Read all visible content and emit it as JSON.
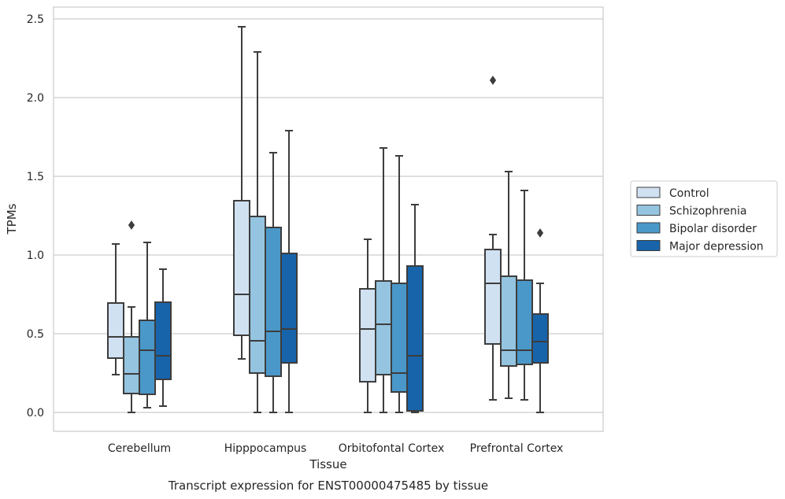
{
  "chart_data": {
    "type": "box",
    "title": "",
    "caption": "Transcript expression for ENST00000475485 by tissue",
    "xlabel": "Tissue",
    "ylabel": "TPMs",
    "ylim": [
      -0.12,
      2.58
    ],
    "yticks": [
      0.0,
      0.5,
      1.0,
      1.5,
      2.0,
      2.5
    ],
    "ytick_labels": [
      "0.0",
      "0.5",
      "1.0",
      "1.5",
      "2.0",
      "2.5"
    ],
    "grid": "horizontal",
    "legend_position": "right",
    "categories": [
      "Cerebellum",
      "Hipppocampus",
      "Orbitofontal Cortex",
      "Prefrontal Cortex"
    ],
    "series": [
      {
        "name": "Control",
        "color": "#d0e1f2",
        "boxes": [
          {
            "whislo": 0.24,
            "q1": 0.345,
            "med": 0.48,
            "q3": 0.695,
            "whishi": 1.07,
            "fliers": []
          },
          {
            "whislo": 0.34,
            "q1": 0.49,
            "med": 0.75,
            "q3": 1.345,
            "whishi": 2.45,
            "fliers": []
          },
          {
            "whislo": 0.0,
            "q1": 0.195,
            "med": 0.53,
            "q3": 0.785,
            "whishi": 1.1,
            "fliers": []
          },
          {
            "whislo": 0.08,
            "q1": 0.435,
            "med": 0.82,
            "q3": 1.035,
            "whishi": 1.13,
            "fliers": [
              2.11
            ]
          }
        ]
      },
      {
        "name": "Schizophrenia",
        "color": "#94c4df",
        "boxes": [
          {
            "whislo": 0.0,
            "q1": 0.12,
            "med": 0.245,
            "q3": 0.48,
            "whishi": 0.67,
            "fliers": [
              1.19
            ]
          },
          {
            "whislo": 0.0,
            "q1": 0.25,
            "med": 0.455,
            "q3": 1.245,
            "whishi": 2.29,
            "fliers": []
          },
          {
            "whislo": 0.0,
            "q1": 0.24,
            "med": 0.56,
            "q3": 0.835,
            "whishi": 1.68,
            "fliers": []
          },
          {
            "whislo": 0.09,
            "q1": 0.295,
            "med": 0.395,
            "q3": 0.865,
            "whishi": 1.53,
            "fliers": []
          }
        ]
      },
      {
        "name": "Bipolar disorder",
        "color": "#4a98c9",
        "boxes": [
          {
            "whislo": 0.03,
            "q1": 0.115,
            "med": 0.395,
            "q3": 0.585,
            "whishi": 1.08,
            "fliers": []
          },
          {
            "whislo": 0.0,
            "q1": 0.23,
            "med": 0.515,
            "q3": 1.175,
            "whishi": 1.65,
            "fliers": []
          },
          {
            "whislo": 0.0,
            "q1": 0.13,
            "med": 0.25,
            "q3": 0.82,
            "whishi": 1.63,
            "fliers": []
          },
          {
            "whislo": 0.08,
            "q1": 0.305,
            "med": 0.395,
            "q3": 0.84,
            "whishi": 1.41,
            "fliers": []
          }
        ]
      },
      {
        "name": "Major depression",
        "color": "#1764ab",
        "boxes": [
          {
            "whislo": 0.04,
            "q1": 0.21,
            "med": 0.36,
            "q3": 0.7,
            "whishi": 0.91,
            "fliers": []
          },
          {
            "whislo": 0.0,
            "q1": 0.315,
            "med": 0.53,
            "q3": 1.01,
            "whishi": 1.79,
            "fliers": []
          },
          {
            "whislo": 0.0,
            "q1": 0.01,
            "med": 0.36,
            "q3": 0.93,
            "whishi": 1.32,
            "fliers": []
          },
          {
            "whislo": 0.0,
            "q1": 0.315,
            "med": 0.45,
            "q3": 0.625,
            "whishi": 0.82,
            "fliers": [
              1.14
            ]
          }
        ]
      }
    ]
  }
}
